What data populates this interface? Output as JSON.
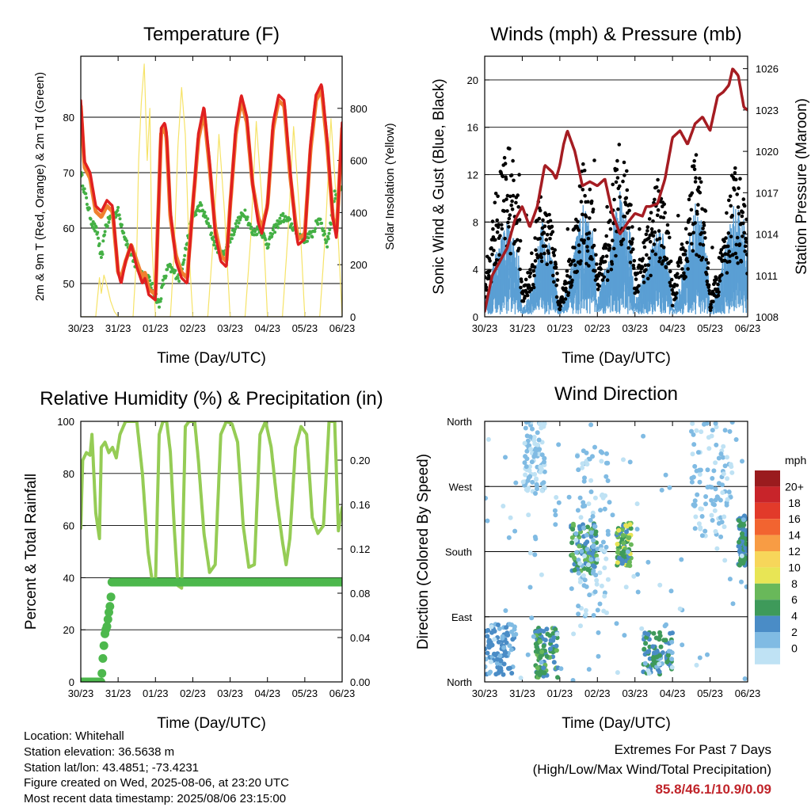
{
  "x_ticks": [
    "30/23",
    "31/23",
    "01/23",
    "02/23",
    "03/23",
    "04/23",
    "05/23",
    "06/23"
  ],
  "footer": {
    "location": "Location: Whitehall",
    "elevation": "Station elevation: 36.5638 m",
    "latlon": "Station lat/lon: 43.4851; -73.4231",
    "created": "Figure created on Wed, 2025-08-06, at 23:20 UTC",
    "recent": "Most recent data timestamp: 2025/08/06 23:15:00",
    "extremes_title": "Extremes For Past 7 Days",
    "extremes_sub": "(High/Low/Max Wind/Total Precipitation)",
    "extremes_values": "85.8/46.1/10.9/0.09"
  },
  "colors": {
    "temp2m": "#e02020",
    "temp9m": "#f08030",
    "dewpoint": "#44b045",
    "solar": "#f6e368",
    "gust": "#000000",
    "wind": "#5a9fd4",
    "pressure": "#a51c22",
    "rh": "#95cc55",
    "precip": "#4db84d"
  },
  "chart_data": [
    {
      "id": "temperature",
      "type": "line",
      "title": "Temperature (F)",
      "xlabel": "Time (Day/UTC)",
      "ylabel": "2m & 9m T (Red, Orange) & 2m Td (Green)",
      "ylabel_right": "Solar Insolation (Yellow)",
      "ylim": [
        44,
        91
      ],
      "yticks": [
        50,
        60,
        70,
        80
      ],
      "ylim_right": [
        0,
        1000
      ],
      "yticks_right": [
        0,
        200,
        400,
        600,
        800
      ],
      "xlim": [
        0,
        7
      ],
      "grid": "horizontal",
      "series": [
        {
          "key": "t2m",
          "axis": "left",
          "x": [
            0,
            0.1,
            0.25,
            0.4,
            0.55,
            0.7,
            0.85,
            1.0,
            1.08,
            1.2,
            1.35,
            1.5,
            1.65,
            1.72,
            1.82,
            2.0,
            2.15,
            2.25,
            2.3,
            2.4,
            2.55,
            2.7,
            2.85,
            3.0,
            3.15,
            3.3,
            3.45,
            3.6,
            3.75,
            3.9,
            4.0,
            4.15,
            4.3,
            4.45,
            4.6,
            4.75,
            4.85,
            5.0,
            5.15,
            5.3,
            5.45,
            5.6,
            5.75,
            5.82,
            6.0,
            6.15,
            6.3,
            6.45,
            6.6,
            6.75,
            6.85,
            7.0
          ],
          "y": [
            83,
            72,
            70,
            64,
            63,
            65,
            64,
            52,
            50,
            54,
            57,
            53,
            50,
            51,
            48,
            47,
            78,
            79,
            77,
            63,
            54,
            51,
            50,
            64,
            77,
            82,
            72,
            59,
            54,
            53,
            64,
            78,
            84,
            80,
            68,
            61,
            59,
            64,
            79,
            84,
            83,
            71,
            60,
            57,
            58,
            75,
            84,
            86,
            76,
            62,
            58,
            79
          ]
        },
        {
          "key": "t9m",
          "axis": "left",
          "x": [
            0,
            0.1,
            0.25,
            0.4,
            0.55,
            0.7,
            0.85,
            1.0,
            1.08,
            1.2,
            1.35,
            1.5,
            1.65,
            1.72,
            1.82,
            2.0,
            2.15,
            2.25,
            2.3,
            2.4,
            2.55,
            2.7,
            2.85,
            3.0,
            3.15,
            3.3,
            3.45,
            3.6,
            3.75,
            3.9,
            4.0,
            4.15,
            4.3,
            4.45,
            4.6,
            4.75,
            4.85,
            5.0,
            5.15,
            5.3,
            5.45,
            5.6,
            5.75,
            5.82,
            6.0,
            6.15,
            6.3,
            6.45,
            6.6,
            6.75,
            6.85,
            7.0
          ],
          "y": [
            82,
            71,
            69,
            63,
            62,
            64,
            63,
            52,
            51,
            54,
            57,
            54,
            51,
            52,
            49,
            48,
            77,
            78,
            76,
            62,
            55,
            52,
            51,
            64,
            76,
            81,
            71,
            60,
            55,
            54,
            64,
            77,
            83,
            79,
            68,
            62,
            60,
            64,
            78,
            83,
            82,
            70,
            61,
            58,
            59,
            74,
            83,
            85,
            75,
            62,
            59,
            78
          ]
        },
        {
          "key": "td2m",
          "axis": "left",
          "x": [
            0,
            0.15,
            0.3,
            0.45,
            0.55,
            0.65,
            0.8,
            1.0,
            1.2,
            1.4,
            1.6,
            1.8,
            2.0,
            2.1,
            2.2,
            2.35,
            2.5,
            2.65,
            2.8,
            3.0,
            3.2,
            3.4,
            3.6,
            3.8,
            4.0,
            4.2,
            4.4,
            4.6,
            4.8,
            5.0,
            5.2,
            5.4,
            5.6,
            5.8,
            6.0,
            6.2,
            6.4,
            6.6,
            6.8,
            7.0
          ],
          "y": [
            70,
            65,
            61,
            59,
            54,
            60,
            62,
            63,
            58,
            54,
            52,
            51,
            48,
            46,
            50,
            53,
            52,
            51,
            56,
            62,
            64,
            61,
            57,
            55,
            58,
            61,
            63,
            59,
            60,
            57,
            60,
            62,
            61,
            59,
            58,
            59,
            62,
            57,
            66,
            67
          ]
        },
        {
          "key": "solar",
          "axis": "right",
          "x": [
            0,
            0.4,
            0.5,
            0.55,
            0.62,
            0.7,
            0.8,
            0.9,
            1.0,
            1.4,
            1.5,
            1.55,
            1.62,
            1.7,
            1.78,
            1.85,
            1.9,
            2.0,
            2.4,
            2.5,
            2.6,
            2.7,
            2.8,
            2.9,
            3.0,
            3.4,
            3.55,
            3.7,
            3.85,
            4.0,
            4.4,
            4.55,
            4.7,
            4.85,
            5.0,
            5.4,
            5.55,
            5.7,
            5.85,
            6.0,
            6.4,
            6.55,
            6.7,
            6.85,
            7.0
          ],
          "y": [
            0,
            0,
            150,
            90,
            160,
            120,
            60,
            20,
            0,
            0,
            250,
            600,
            820,
            970,
            600,
            800,
            300,
            0,
            0,
            250,
            650,
            880,
            700,
            250,
            0,
            0,
            300,
            700,
            400,
            0,
            0,
            300,
            750,
            450,
            0,
            0,
            320,
            730,
            420,
            0,
            0,
            320,
            760,
            430,
            0
          ]
        }
      ]
    },
    {
      "id": "winds",
      "type": "scatter",
      "title": "Winds (mph) & Pressure (mb)",
      "xlabel": "Time (Day/UTC)",
      "ylabel": "Sonic Wind & Gust (Blue, Black)",
      "ylabel_right": "Station Pressure (Maroon)",
      "ylim": [
        0,
        22
      ],
      "yticks": [
        0,
        4,
        8,
        12,
        16,
        20
      ],
      "ylim_right": [
        1008,
        1026.9
      ],
      "yticks_right": [
        1008,
        1011,
        1014,
        1017,
        1020,
        1023,
        1026
      ],
      "xlim": [
        0,
        7
      ],
      "grid": "horizontal",
      "gust_envelope": {
        "x": [
          0,
          0.3,
          0.6,
          0.9,
          1.0,
          1.3,
          1.5,
          1.8,
          2.0,
          2.3,
          2.6,
          2.9,
          3.0,
          3.3,
          3.6,
          3.9,
          4.0,
          4.3,
          4.6,
          4.9,
          5.0,
          5.3,
          5.6,
          5.9,
          6.0,
          6.3,
          6.6,
          6.9,
          7.0
        ],
        "y": [
          3,
          9,
          13,
          9,
          2,
          5,
          10,
          7,
          1,
          5,
          11,
          8,
          3,
          7,
          14,
          8,
          3,
          6,
          10,
          7,
          2,
          6,
          12,
          8,
          1,
          5,
          11,
          9,
          6
        ]
      },
      "wind_envelope": {
        "x": [
          0,
          0.3,
          0.6,
          0.9,
          1.0,
          1.3,
          1.5,
          1.8,
          2.0,
          2.3,
          2.6,
          2.9,
          3.0,
          3.3,
          3.6,
          3.9,
          4.0,
          4.3,
          4.6,
          4.9,
          5.0,
          5.3,
          5.6,
          5.9,
          6.0,
          6.3,
          6.6,
          6.9,
          7.0
        ],
        "y": [
          1,
          4,
          6,
          4,
          0.5,
          2,
          6,
          4,
          0.5,
          3,
          7,
          5,
          1,
          4,
          8,
          5,
          1,
          3,
          6,
          4,
          0.5,
          3,
          7,
          5,
          0.5,
          3,
          7,
          6,
          4
        ]
      },
      "series": [
        {
          "key": "pressure",
          "axis": "right",
          "x": [
            0,
            0.2,
            0.4,
            0.6,
            0.8,
            1.0,
            1.2,
            1.4,
            1.6,
            1.8,
            1.9,
            2.0,
            2.1,
            2.2,
            2.4,
            2.6,
            2.8,
            3.0,
            3.2,
            3.4,
            3.6,
            3.8,
            4.0,
            4.2,
            4.3,
            4.4,
            4.6,
            4.8,
            5.0,
            5.2,
            5.4,
            5.6,
            5.8,
            6.0,
            6.2,
            6.35,
            6.5,
            6.6,
            6.75,
            6.9,
            7.0
          ],
          "y": [
            1008.4,
            1011,
            1012,
            1013,
            1015,
            1016,
            1014.5,
            1016,
            1019,
            1018.5,
            1018,
            1019,
            1020.5,
            1021.5,
            1020,
            1017.5,
            1017.8,
            1017.5,
            1018,
            1015.5,
            1014,
            1014.8,
            1015.5,
            1015.3,
            1016,
            1016,
            1016.2,
            1018,
            1021,
            1021.5,
            1020.5,
            1022,
            1022.5,
            1021.5,
            1024,
            1024.3,
            1024.8,
            1026,
            1025.5,
            1023.2,
            1023
          ]
        }
      ]
    },
    {
      "id": "humidity",
      "type": "line",
      "title": "Relative Humidity (%) & Precipitation (in)",
      "xlabel": "Time (Day/UTC)",
      "ylabel": "Percent & Total Rainfall",
      "ylim": [
        0,
        100
      ],
      "yticks": [
        0,
        20,
        40,
        60,
        80,
        100
      ],
      "ylim_right": [
        0,
        0.235
      ],
      "yticks_right": [
        0,
        0.04,
        0.08,
        0.12,
        0.16,
        0.2
      ],
      "yticks_right_labels": [
        "0.00",
        "0.04",
        "0.08",
        "0.12",
        "0.16",
        "0.20"
      ],
      "xlim": [
        0,
        7
      ],
      "grid": "horizontal",
      "series": [
        {
          "key": "rh",
          "axis": "left",
          "x": [
            0,
            0.05,
            0.15,
            0.25,
            0.3,
            0.4,
            0.5,
            0.55,
            0.65,
            0.75,
            0.85,
            0.95,
            1.05,
            1.2,
            1.35,
            1.5,
            1.65,
            1.8,
            1.9,
            2.0,
            2.1,
            2.2,
            2.3,
            2.4,
            2.5,
            2.6,
            2.7,
            2.8,
            2.9,
            3.05,
            3.15,
            3.3,
            3.45,
            3.6,
            3.75,
            3.9,
            4.05,
            4.2,
            4.35,
            4.5,
            4.65,
            4.8,
            4.95,
            5.1,
            5.25,
            5.4,
            5.5,
            5.6,
            5.75,
            5.9,
            6.05,
            6.2,
            6.35,
            6.5,
            6.65,
            6.8,
            6.9,
            7.0
          ],
          "y": [
            59,
            85,
            88,
            87,
            95,
            65,
            55,
            90,
            92,
            88,
            90,
            86,
            95,
            100,
            100,
            100,
            80,
            50,
            40,
            38,
            95,
            100,
            100,
            88,
            60,
            37,
            36,
            98,
            100,
            100,
            85,
            57,
            42,
            45,
            95,
            100,
            99,
            92,
            60,
            44,
            45,
            95,
            100,
            90,
            70,
            54,
            45,
            55,
            90,
            98,
            95,
            63,
            57,
            60,
            100,
            100,
            58,
            67
          ]
        },
        {
          "key": "precip",
          "axis": "right",
          "x": [
            0,
            0.55,
            0.6,
            0.65,
            0.7,
            0.75,
            0.8,
            0.83,
            0.9,
            7.0
          ],
          "y": [
            0,
            0,
            0.025,
            0.045,
            0.05,
            0.062,
            0.072,
            0.09,
            0.09,
            0.09
          ]
        }
      ]
    },
    {
      "id": "wind_direction",
      "type": "scatter",
      "title": "Wind Direction",
      "xlabel": "Time (Day/UTC)",
      "ylabel": "Direction (Colored By Speed)",
      "yticks": [
        "North",
        "East",
        "South",
        "West",
        "North"
      ],
      "xlim": [
        0,
        7
      ],
      "grid": "horizontal",
      "legend": {
        "title": "mph",
        "position": "right",
        "labels": [
          "20+",
          "18",
          "16",
          "14",
          "12",
          "10",
          "8",
          "6",
          "4",
          "2",
          "0"
        ],
        "colors": [
          "#9a1b1e",
          "#c8242a",
          "#e23a2a",
          "#f26430",
          "#f89c44",
          "#f7d65a",
          "#e8e555",
          "#69b85a",
          "#3e9a5a",
          "#4a8cc6",
          "#80bbe3",
          "#bfe2f4"
        ]
      },
      "clusters": [
        {
          "x": [
            0.0,
            0.8
          ],
          "dir": [
            10,
            80
          ],
          "speed": [
            2,
            5
          ]
        },
        {
          "x": [
            1.35,
            1.95
          ],
          "dir": [
            5,
            75
          ],
          "speed": [
            3,
            8
          ]
        },
        {
          "x": [
            2.3,
            3.0
          ],
          "dir": [
            150,
            220
          ],
          "speed": [
            3,
            8
          ]
        },
        {
          "x": [
            3.5,
            3.9
          ],
          "dir": [
            160,
            220
          ],
          "speed": [
            4,
            10
          ]
        },
        {
          "x": [
            4.2,
            5.0
          ],
          "dir": [
            10,
            70
          ],
          "speed": [
            2,
            7
          ]
        },
        {
          "x": [
            6.75,
            7.0
          ],
          "dir": [
            160,
            230
          ],
          "speed": [
            3,
            7
          ]
        },
        {
          "x": [
            1.0,
            1.6
          ],
          "dir": [
            260,
            360
          ],
          "speed": [
            0,
            2
          ]
        },
        {
          "x": [
            2.4,
            3.3
          ],
          "dir": [
            90,
            320
          ],
          "speed": [
            0,
            3
          ]
        },
        {
          "x": [
            5.5,
            6.6
          ],
          "dir": [
            200,
            360
          ],
          "speed": [
            0,
            3
          ]
        },
        {
          "x": [
            0.0,
            7.0
          ],
          "dir": [
            0,
            360
          ],
          "speed": [
            0,
            3
          ]
        }
      ]
    }
  ]
}
